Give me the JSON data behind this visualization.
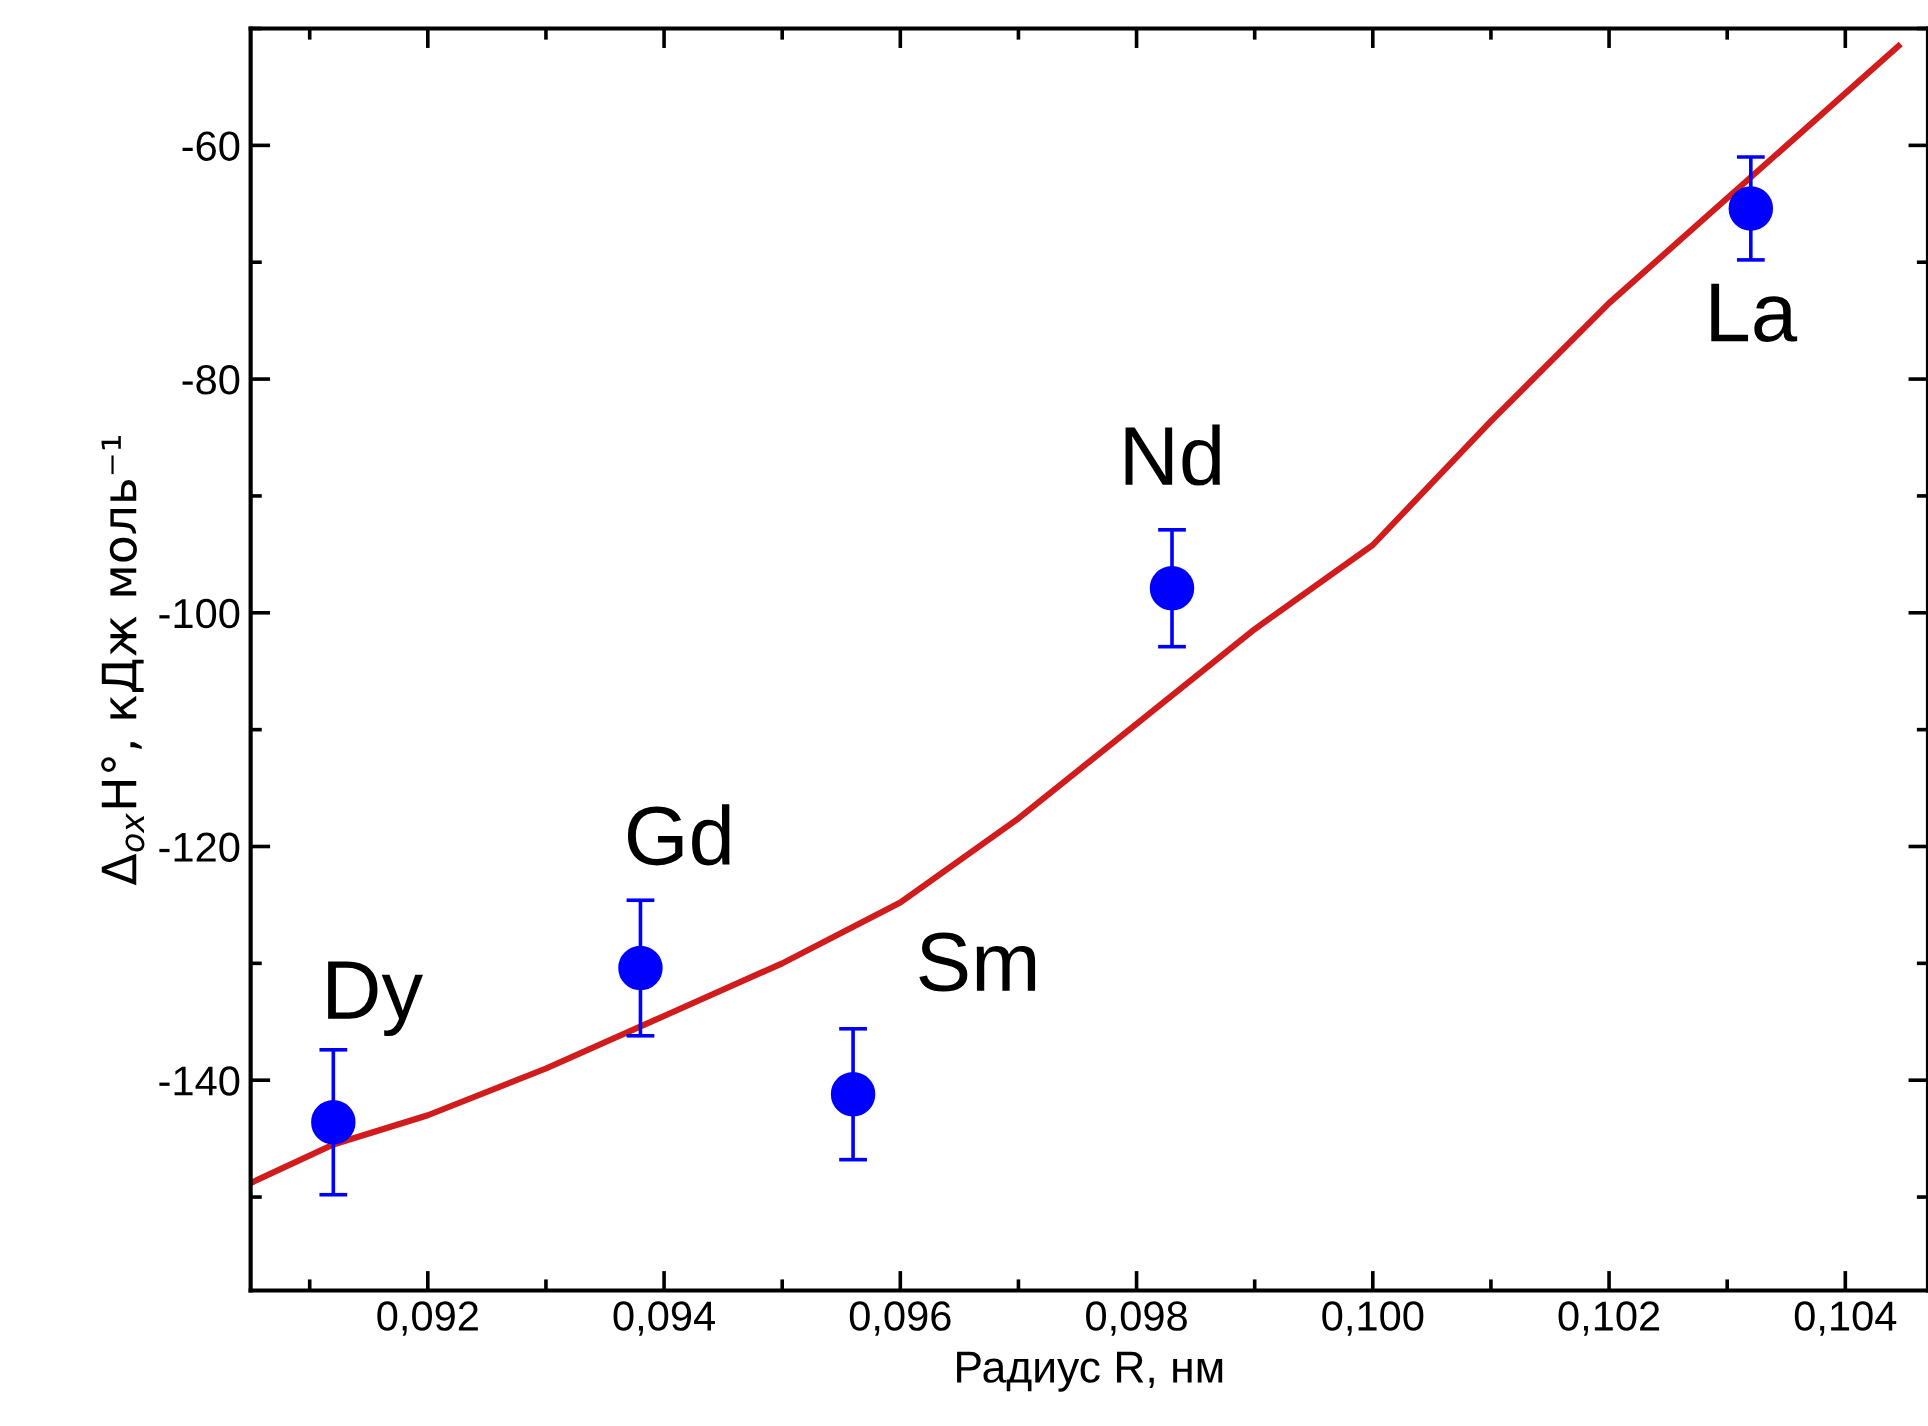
{
  "chart_data": {
    "type": "scatter",
    "xlabel": "Радиус R, нм",
    "ylabel": "Δ$_{ox}$H°, кДж моль⁻¹",
    "xlim": [
      0.0905,
      0.1047
    ],
    "ylim": [
      -158,
      -50
    ],
    "xticks": [
      {
        "value": 0.092,
        "label": "0,092"
      },
      {
        "value": 0.094,
        "label": "0,094"
      },
      {
        "value": 0.096,
        "label": "0,096"
      },
      {
        "value": 0.098,
        "label": "0,098"
      },
      {
        "value": 0.1,
        "label": "0,100"
      },
      {
        "value": 0.102,
        "label": "0,102"
      },
      {
        "value": 0.104,
        "label": "0,104"
      }
    ],
    "yticks": [
      -60,
      -80,
      -100,
      -120,
      -140
    ],
    "grid": false,
    "series": [
      {
        "color": "#0000ff",
        "marker": "circle",
        "x": [
          0.0912,
          0.0938,
          0.0956,
          0.0983,
          0.1032
        ],
        "values": [
          -143.6,
          -130.4,
          -141.2,
          -97.9,
          -65.4
        ],
        "errors": [
          6.2,
          5.8,
          5.6,
          5.0,
          4.4
        ]
      },
      {
        "type": "line",
        "color": "#d01c1c",
        "marker": "none",
        "line_style": "solid",
        "x": [
          0.0905,
          0.0912,
          0.092,
          0.093,
          0.094,
          0.095,
          0.096,
          0.097,
          0.098,
          0.099,
          0.1,
          0.101,
          0.102,
          0.10445
        ],
        "values": [
          -148.8,
          -145.5,
          -143,
          -139,
          -134.5,
          -130,
          -124.8,
          -117.6,
          -109.5,
          -101.4,
          -94.2,
          -83.6,
          -73.5,
          -51.5
        ]
      }
    ],
    "annotations": [
      {
        "text": "Dy",
        "x": 0.0912,
        "y": -143.6
      },
      {
        "text": "Gd",
        "x": 0.0938,
        "y": -130.4
      },
      {
        "text": "Sm",
        "x": 0.0956,
        "y": -141.2
      },
      {
        "text": "Nd",
        "x": 0.0983,
        "y": -97.9
      },
      {
        "text": "La",
        "x": 0.1032,
        "y": -65.4
      }
    ]
  }
}
